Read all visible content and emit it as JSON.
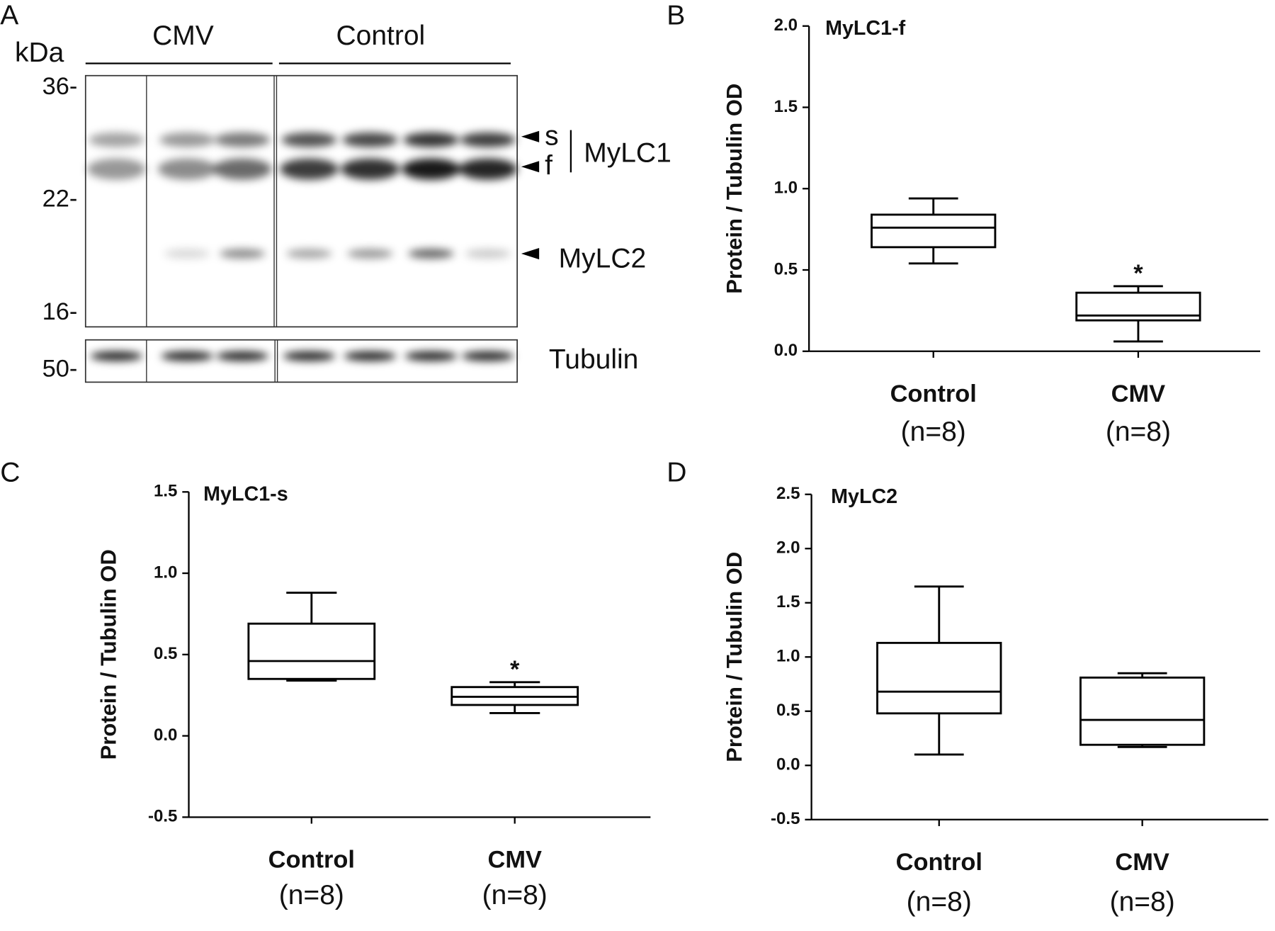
{
  "panels": {
    "a": "A",
    "b": "B",
    "c": "C",
    "d": "D"
  },
  "blot": {
    "unit": "kDa",
    "groups": [
      "CMV",
      "Control"
    ],
    "markers": [
      "36-",
      "22-",
      "16-",
      "50-"
    ],
    "band_labels": {
      "s": "s",
      "f": "f",
      "mylc1": "MyLC1",
      "mylc2": "MyLC2",
      "tubulin": "Tubulin"
    }
  },
  "chart_data": [
    {
      "type": "box",
      "title": "MyLC1-f",
      "y_label": "Protein / Tubulin OD",
      "categories": [
        "Control",
        "CMV"
      ],
      "category_subtitles": [
        "(n=8)",
        "(n=8)"
      ],
      "boxes": [
        {
          "whisker_low": 0.54,
          "q1": 0.64,
          "median": 0.76,
          "q3": 0.84,
          "whisker_high": 0.94
        },
        {
          "whisker_low": 0.06,
          "q1": 0.19,
          "median": 0.22,
          "q3": 0.36,
          "whisker_high": 0.4
        }
      ],
      "ylim": [
        0,
        2
      ],
      "yticks": [
        {
          "value": 0,
          "label": "0.0"
        },
        {
          "value": 0.5,
          "label": "0.5"
        },
        {
          "value": 1,
          "label": "1.0"
        },
        {
          "value": 1.5,
          "label": "1.5"
        },
        {
          "value": 2,
          "label": "2.0"
        }
      ],
      "annotations": [
        {
          "text": "*",
          "category": "CMV"
        }
      ],
      "color": "#000000"
    },
    {
      "type": "box",
      "title": "MyLC1-s",
      "y_label": "Protein / Tubulin OD",
      "categories": [
        "Control",
        "CMV"
      ],
      "category_subtitles": [
        "(n=8)",
        "(n=8)"
      ],
      "boxes": [
        {
          "whisker_low": 0.34,
          "q1": 0.35,
          "median": 0.46,
          "q3": 0.69,
          "whisker_high": 0.88
        },
        {
          "whisker_low": 0.14,
          "q1": 0.19,
          "median": 0.24,
          "q3": 0.3,
          "whisker_high": 0.33
        }
      ],
      "ylim": [
        -0.5,
        1.5
      ],
      "yticks": [
        -0.5,
        {
          "value": 0,
          "label": "0.0"
        },
        0.5,
        {
          "value": 1,
          "label": "1.0"
        },
        1.5
      ],
      "annotations": [
        {
          "text": "*",
          "category": "CMV"
        }
      ],
      "color": "#000000"
    },
    {
      "type": "box",
      "title": "MyLC2",
      "y_label": "Protein / Tubulin OD",
      "categories": [
        "Control",
        "CMV"
      ],
      "category_subtitles": [
        "(n=8)",
        "(n=8)"
      ],
      "boxes": [
        {
          "whisker_low": 0.1,
          "q1": 0.48,
          "median": 0.68,
          "q3": 1.13,
          "whisker_high": 1.65
        },
        {
          "whisker_low": 0.17,
          "q1": 0.19,
          "median": 0.42,
          "q3": 0.81,
          "whisker_high": 0.85
        }
      ],
      "ylim": [
        -0.5,
        2.5
      ],
      "yticks": [
        -0.5,
        {
          "value": 0,
          "label": "0.0"
        },
        0.5,
        {
          "value": 1,
          "label": "1.0"
        },
        1.5,
        {
          "value": 2,
          "label": "2.0"
        },
        2.5
      ],
      "annotations": [],
      "color": "#000000"
    }
  ]
}
